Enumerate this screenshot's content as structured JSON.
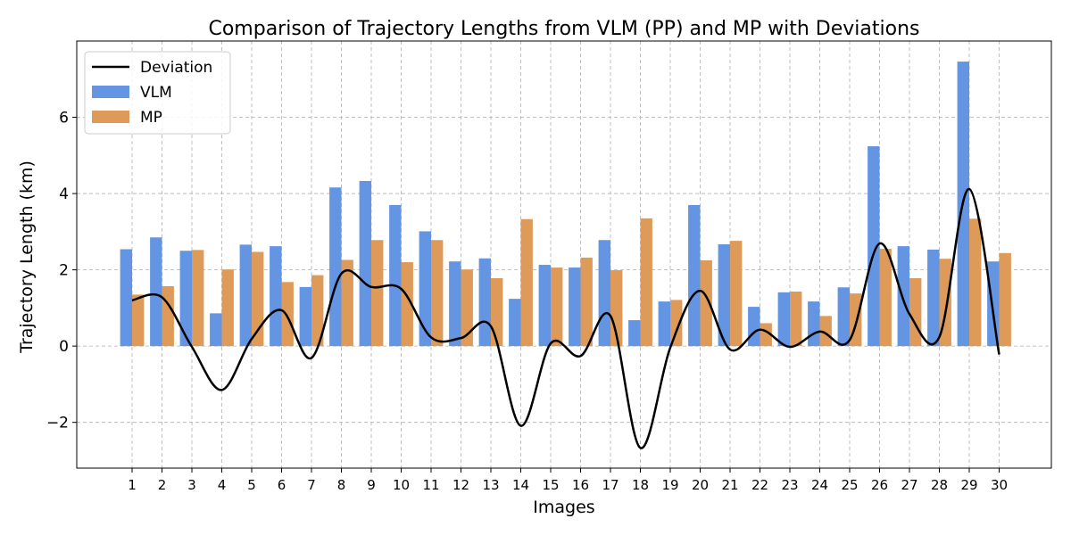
{
  "chart_data": {
    "type": "bar",
    "title": "Comparison of Trajectory Lengths from VLM (PP) and MP with Deviations",
    "xlabel": "Images",
    "ylabel": "Trajectory Length (km)",
    "categories": [
      "1",
      "2",
      "3",
      "4",
      "5",
      "6",
      "7",
      "8",
      "9",
      "10",
      "11",
      "12",
      "13",
      "14",
      "15",
      "16",
      "17",
      "18",
      "19",
      "20",
      "21",
      "22",
      "23",
      "24",
      "25",
      "26",
      "27",
      "28",
      "29",
      "30"
    ],
    "ylim": [
      -3.2,
      8.0
    ],
    "yticks": [
      -2,
      0,
      2,
      4,
      6
    ],
    "ytick_labels": [
      "−2",
      "0",
      "2",
      "4",
      "6"
    ],
    "grid": true,
    "legend_position": "upper-left",
    "series": [
      {
        "name": "VLM",
        "kind": "bar",
        "color": "#6495e3",
        "values": [
          2.54,
          2.85,
          2.5,
          0.86,
          2.66,
          2.62,
          1.55,
          4.16,
          4.33,
          3.7,
          3.01,
          2.22,
          2.3,
          1.24,
          2.13,
          2.06,
          2.78,
          0.68,
          1.17,
          3.7,
          2.67,
          1.03,
          1.41,
          1.17,
          1.54,
          5.24,
          2.62,
          2.53,
          7.46,
          2.22
        ]
      },
      {
        "name": "MP",
        "kind": "bar",
        "color": "#de9a59",
        "values": [
          1.35,
          1.57,
          2.52,
          2.01,
          2.47,
          1.68,
          1.86,
          2.26,
          2.78,
          2.2,
          2.78,
          2.01,
          1.78,
          3.33,
          2.06,
          2.32,
          1.99,
          3.35,
          1.21,
          2.25,
          2.76,
          0.6,
          1.43,
          0.79,
          1.38,
          2.55,
          1.78,
          2.29,
          3.34,
          2.44
        ]
      },
      {
        "name": "Deviation",
        "kind": "line",
        "color": "#000000",
        "smooth": true,
        "values": [
          1.2,
          1.28,
          -0.02,
          -1.15,
          0.19,
          0.94,
          -0.31,
          1.9,
          1.55,
          1.5,
          0.23,
          0.21,
          0.52,
          -2.09,
          0.07,
          -0.26,
          0.79,
          -2.67,
          -0.04,
          1.45,
          -0.09,
          0.43,
          -0.02,
          0.38,
          0.16,
          2.69,
          0.84,
          0.24,
          4.12,
          -0.22
        ]
      }
    ]
  }
}
